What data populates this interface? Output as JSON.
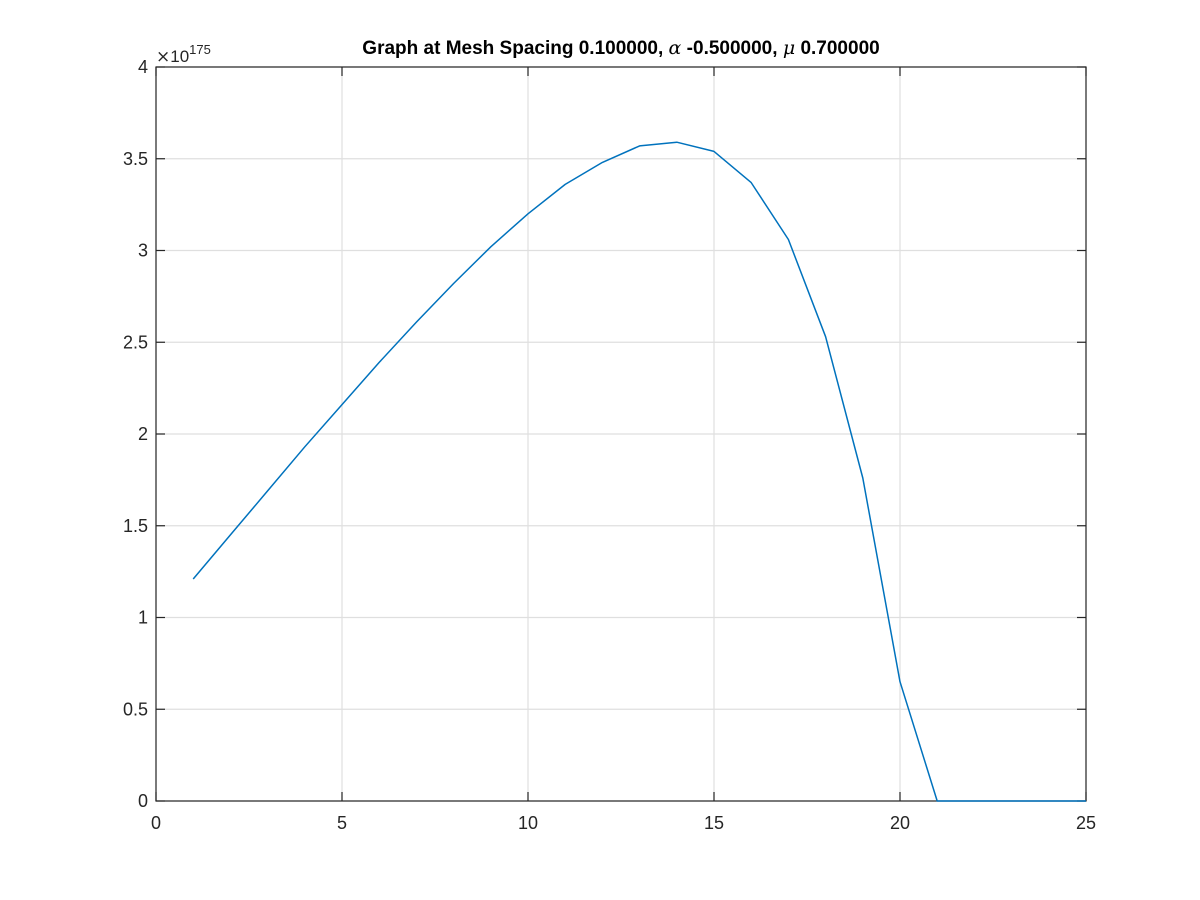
{
  "title": {
    "prefix": "Graph at Mesh Spacing 0.100000, ",
    "symbol1": "α",
    "mid": " -0.500000, ",
    "symbol2": "μ",
    "suffix": " 0.700000"
  },
  "exponent": {
    "times": "×",
    "base": "10",
    "power": "175"
  },
  "colors": {
    "line": "#0072BD",
    "axis": "#262626",
    "grid": "#DFDFDF"
  },
  "chart_data": {
    "type": "line",
    "title": "Graph at Mesh Spacing 0.100000, α -0.500000, μ 0.700000",
    "xlabel": "",
    "ylabel": "",
    "xlim": [
      0,
      25
    ],
    "ylim": [
      0,
      4
    ],
    "y_multiplier": "×10^175",
    "grid": true,
    "box": true,
    "xticks": [
      "0",
      "5",
      "10",
      "15",
      "20",
      "25"
    ],
    "yticks": [
      "0",
      "0.5",
      "1",
      "1.5",
      "2",
      "2.5",
      "3",
      "3.5",
      "4"
    ],
    "series": [
      {
        "x": [
          1,
          2,
          3,
          4,
          5,
          6,
          7,
          8,
          9,
          10,
          11,
          12,
          13,
          14,
          15,
          16,
          17,
          18,
          19,
          20,
          21,
          22,
          23,
          24,
          25
        ],
        "y": [
          1.21,
          1.45,
          1.69,
          1.93,
          2.16,
          2.39,
          2.61,
          2.82,
          3.02,
          3.2,
          3.36,
          3.48,
          3.57,
          3.59,
          3.54,
          3.37,
          3.06,
          2.53,
          1.76,
          0.65,
          0,
          0,
          0,
          0,
          0
        ]
      }
    ]
  }
}
